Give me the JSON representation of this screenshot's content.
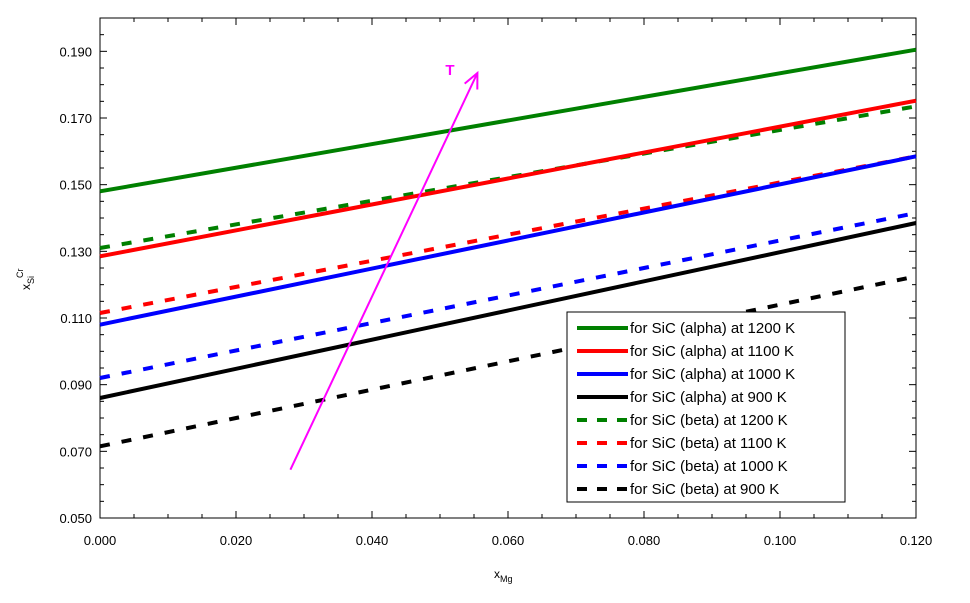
{
  "chart_data": {
    "type": "line",
    "xlabel": {
      "main": "x",
      "sub": "Mg"
    },
    "ylabel": {
      "main": "x",
      "sub": "Si",
      "sup": "Cr"
    },
    "xlim": [
      0.0,
      0.12
    ],
    "ylim": [
      0.05,
      0.2
    ],
    "xticks": [
      0.0,
      0.02,
      0.04,
      0.06,
      0.08,
      0.1,
      0.12
    ],
    "xtick_labels": [
      "0.000",
      "0.020",
      "0.040",
      "0.060",
      "0.080",
      "0.100",
      "0.120"
    ],
    "yticks": [
      0.05,
      0.07,
      0.09,
      0.11,
      0.13,
      0.15,
      0.17,
      0.19
    ],
    "ytick_labels": [
      "0.050",
      "0.070",
      "0.090",
      "0.110",
      "0.130",
      "0.150",
      "0.170",
      "0.190"
    ],
    "grid": false,
    "legend_position": "bottom-right",
    "series": [
      {
        "name": "for SiC (alpha) at 1200 K",
        "color": "#008000",
        "dash": "solid",
        "x": [
          0.0,
          0.12
        ],
        "y": [
          0.148,
          0.1905
        ]
      },
      {
        "name": "for SiC (alpha) at 1100 K",
        "color": "#ff0000",
        "dash": "solid",
        "x": [
          0.0,
          0.12
        ],
        "y": [
          0.1285,
          0.1752
        ]
      },
      {
        "name": "for SiC (alpha) at 1000 K",
        "color": "#0000ff",
        "dash": "solid",
        "x": [
          0.0,
          0.12
        ],
        "y": [
          0.108,
          0.1585
        ]
      },
      {
        "name": "for SiC (alpha) at 900 K",
        "color": "#000000",
        "dash": "solid",
        "x": [
          0.0,
          0.12
        ],
        "y": [
          0.086,
          0.1385
        ]
      },
      {
        "name": "for SiC (beta) at 1200 K",
        "color": "#008000",
        "dash": "dashed",
        "x": [
          0.0,
          0.12
        ],
        "y": [
          0.131,
          0.1735
        ]
      },
      {
        "name": "for SiC (beta) at 1100 K",
        "color": "#ff0000",
        "dash": "dashed",
        "x": [
          0.0,
          0.12
        ],
        "y": [
          0.1115,
          0.1585
        ]
      },
      {
        "name": "for SiC (beta) at 1000 K",
        "color": "#0000ff",
        "dash": "dashed",
        "x": [
          0.0,
          0.12
        ],
        "y": [
          0.092,
          0.1415
        ]
      },
      {
        "name": "for SiC (beta) at 900 K",
        "color": "#000000",
        "dash": "dashed",
        "x": [
          0.0,
          0.12
        ],
        "y": [
          0.0715,
          0.1225
        ]
      }
    ],
    "annotation": {
      "label": "T",
      "color": "#ff00ff",
      "arrow_from": {
        "x": 0.028,
        "y": 0.0645
      },
      "arrow_to": {
        "x": 0.0555,
        "y": 0.1835
      }
    }
  }
}
